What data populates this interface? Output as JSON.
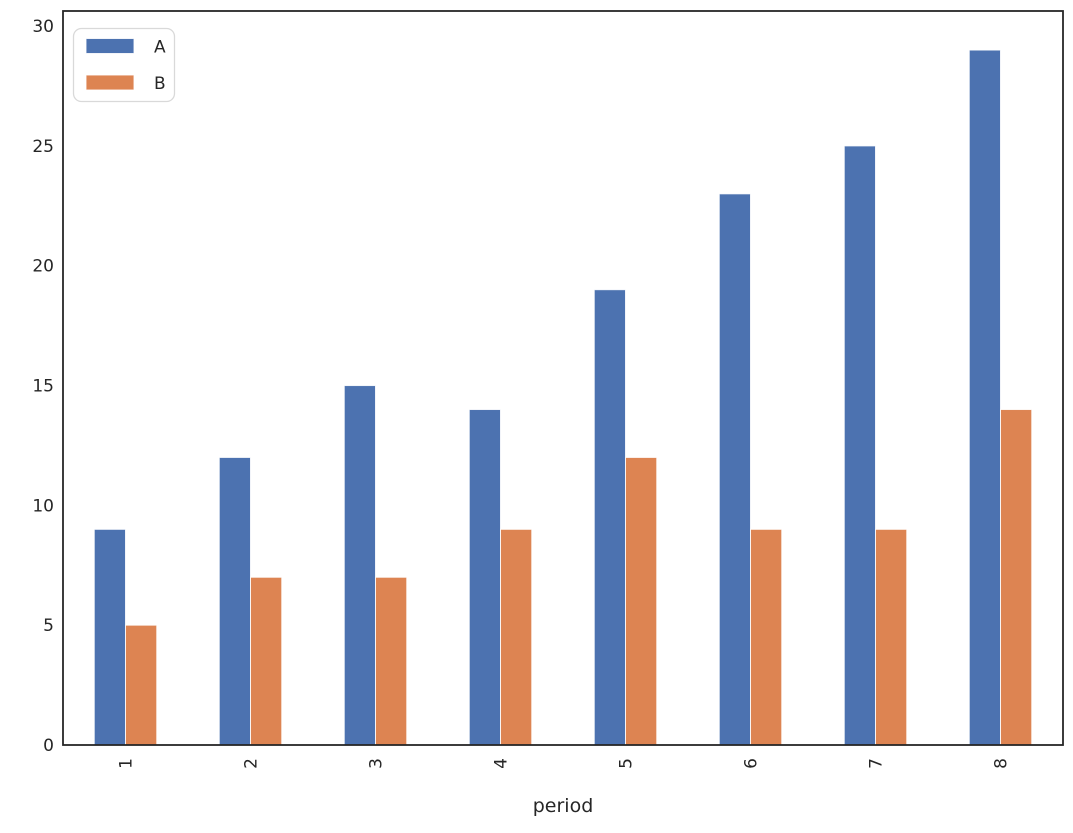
{
  "chart_data": {
    "type": "bar",
    "title": "",
    "xlabel": "period",
    "ylabel": "",
    "categories": [
      "1",
      "2",
      "3",
      "4",
      "5",
      "6",
      "7",
      "8"
    ],
    "series": [
      {
        "name": "A",
        "color": "#4C72B0",
        "values": [
          9,
          12,
          15,
          14,
          19,
          23,
          25,
          29
        ]
      },
      {
        "name": "B",
        "color": "#DD8452",
        "values": [
          5,
          7,
          7,
          9,
          12,
          9,
          9,
          14
        ]
      }
    ],
    "ylim": [
      0,
      30
    ],
    "yticks": [
      0,
      5,
      10,
      15,
      20,
      25,
      30
    ],
    "x_tick_rotation": 90,
    "grid": false,
    "legend_position": "upper left",
    "background_color": "#ffffff",
    "spine_color": "#262626",
    "text_color": "#262626",
    "legend_border_color": "#d9d9d9"
  }
}
